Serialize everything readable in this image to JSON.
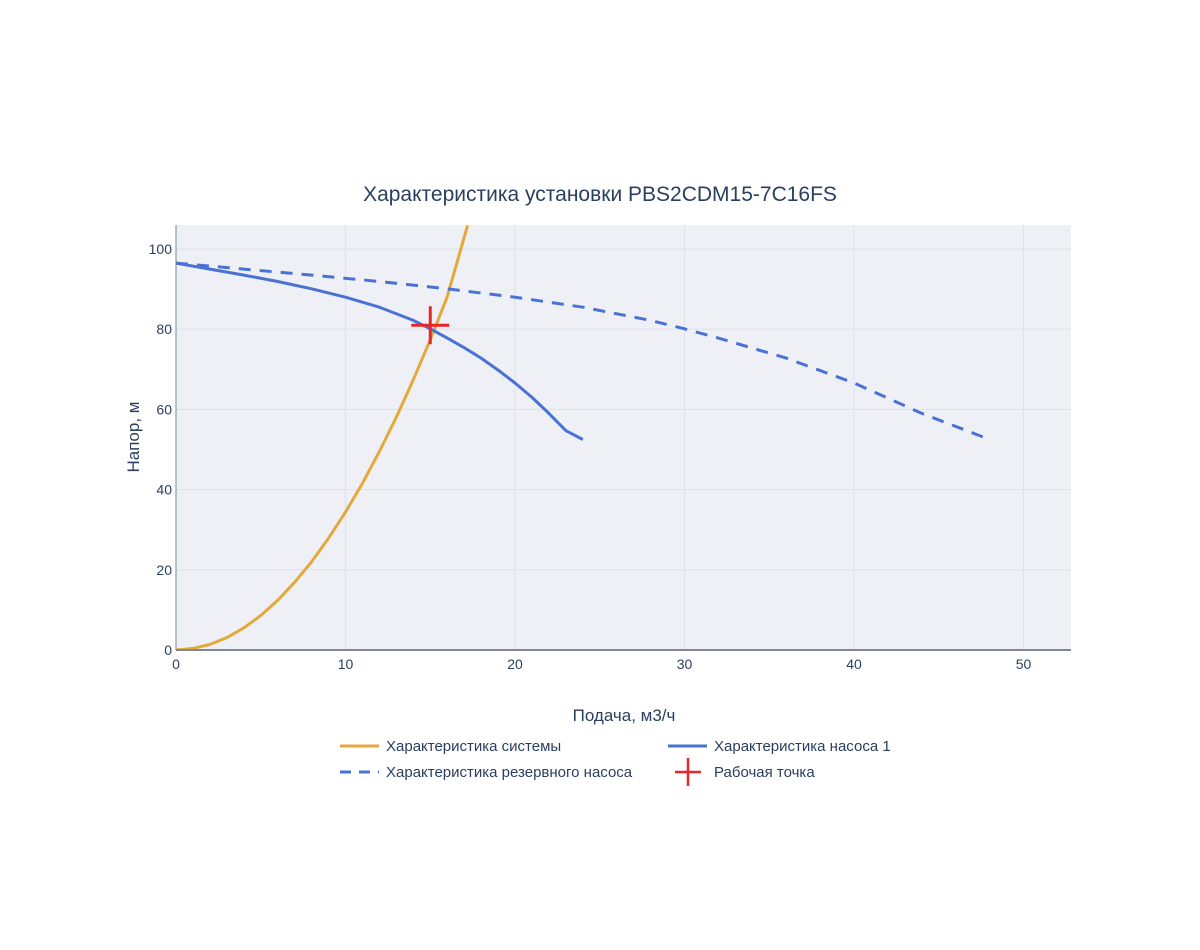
{
  "chart_data": {
    "type": "line",
    "title": "Характеристика установки PBS2CDM15-7C16FS",
    "xlabel": "Подача, м3/ч",
    "ylabel": "Напор, м",
    "xlim": [
      0,
      52.8
    ],
    "ylim": [
      0,
      106
    ],
    "xticks": [
      0,
      10,
      20,
      30,
      40,
      50
    ],
    "yticks": [
      0,
      20,
      40,
      60,
      80,
      100
    ],
    "grid": true,
    "legend_position": "bottom",
    "colors": {
      "system": "#e3a93b",
      "pump": "#4a72d4",
      "reserve": "#4a72d4",
      "operating_point": "#e8262a",
      "plot_bg": "#eef0f6",
      "grid": "#dde1ea"
    },
    "series": [
      {
        "name": "Характеристика системы",
        "style": "solid",
        "color": "#e3a93b",
        "x": [
          0,
          1,
          2,
          3,
          4,
          5,
          6,
          7,
          8,
          9,
          10,
          11,
          12,
          13,
          14,
          15,
          16,
          17.2
        ],
        "y": [
          0,
          0.4,
          1.4,
          3.1,
          5.5,
          8.6,
          12.4,
          16.9,
          22.0,
          27.9,
          34.4,
          41.6,
          49.5,
          58.1,
          67.4,
          77.4,
          88.1,
          105.9
        ]
      },
      {
        "name": "Характеристика насоса 1",
        "style": "solid",
        "color": "#4a72d4",
        "x": [
          0,
          2,
          4,
          6,
          8,
          10,
          12,
          14,
          15,
          16,
          17,
          18,
          19,
          20,
          21,
          22,
          23,
          24
        ],
        "y": [
          96.5,
          95.0,
          93.5,
          91.9,
          90.1,
          88.0,
          85.5,
          82.2,
          80.1,
          77.8,
          75.4,
          72.8,
          69.8,
          66.6,
          63.0,
          59.0,
          54.7,
          52.5
        ]
      },
      {
        "name": "Характеристика резервного насоса",
        "style": "dash",
        "color": "#4a72d4",
        "x": [
          0,
          4,
          8,
          12,
          16,
          20,
          24,
          28,
          30,
          32,
          36,
          40,
          44,
          48
        ],
        "y": [
          96.5,
          95.0,
          93.5,
          91.9,
          90.1,
          88.0,
          85.5,
          82.2,
          80.1,
          77.8,
          72.8,
          66.6,
          59.0,
          52.5
        ]
      }
    ],
    "operating_point": {
      "name": "Рабочая точка",
      "x": 15.0,
      "y": 81.0,
      "marker": "cross",
      "color": "#e8262a"
    }
  }
}
